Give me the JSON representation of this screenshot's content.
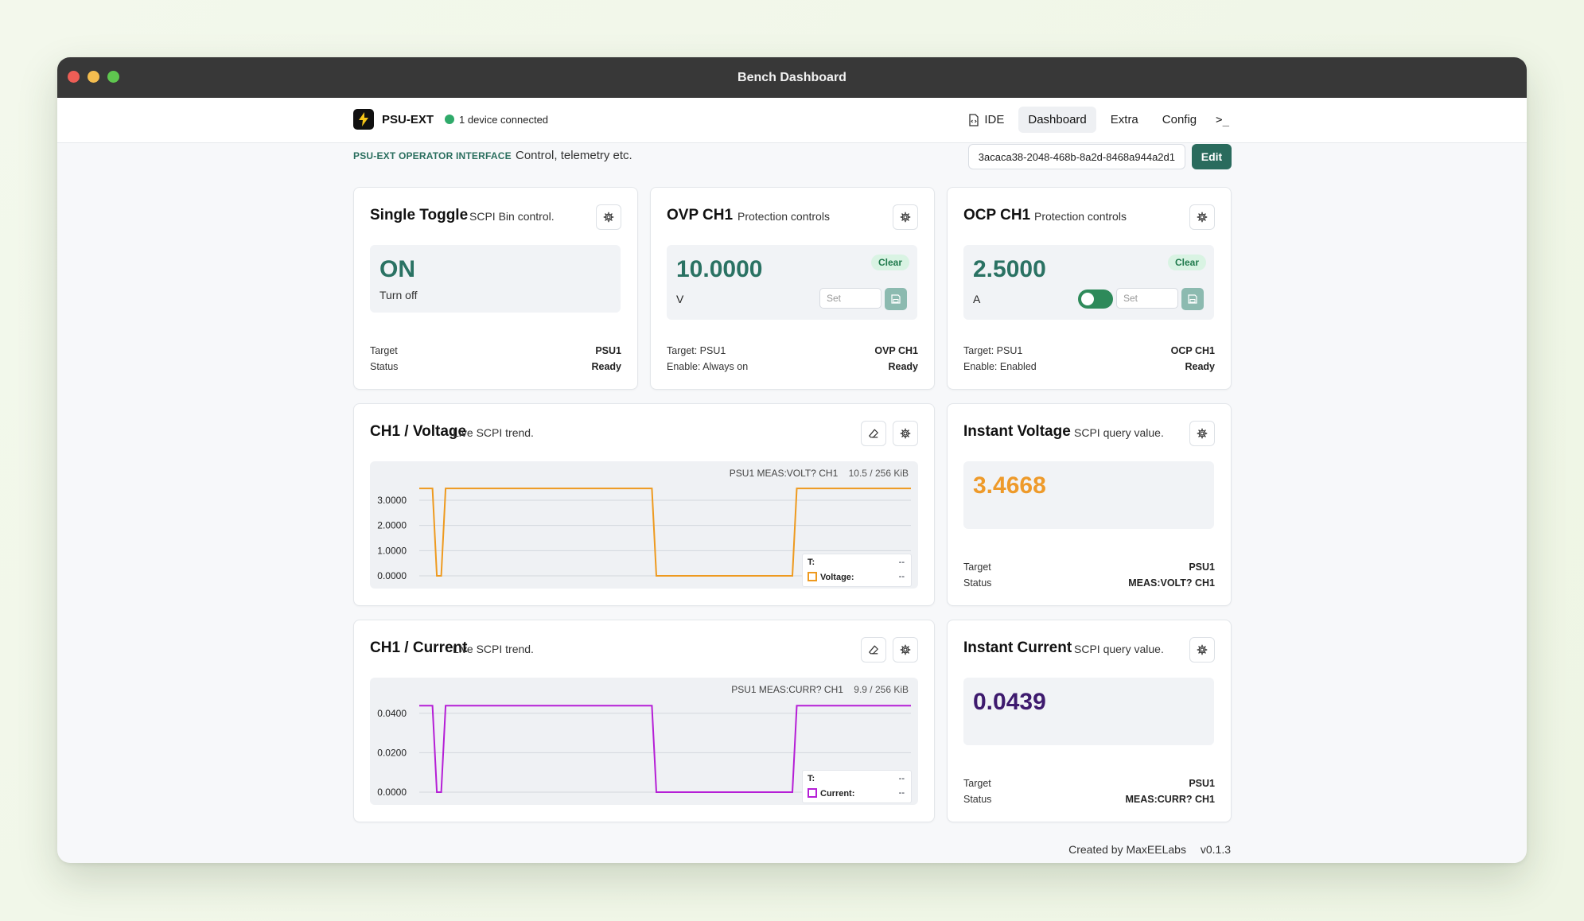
{
  "window": {
    "title": "Bench Dashboard"
  },
  "nav": {
    "brand": "PSU-EXT",
    "connection": "1 device connected",
    "links": [
      "IDE",
      "Dashboard",
      "Extra",
      "Config"
    ],
    "terminal": ">_"
  },
  "subheader": {
    "tag": "PSU-EXT OPERATOR INTERFACE",
    "description": "Control, telemetry etc.",
    "uuid": "3acaca38-2048-468b-8a2d-8468a944a2d1",
    "edit_label": "Edit"
  },
  "toggle_card": {
    "title": "Single Toggle",
    "subtitle": "SCPI Bin control.",
    "state": "ON",
    "action": "Turn off",
    "target_label": "Target",
    "target_value": "PSU1",
    "status_label": "Status",
    "status_value": "Ready"
  },
  "ovp_card": {
    "title": "OVP CH1",
    "subtitle": "Protection controls",
    "value": "10.0000",
    "unit": "V",
    "clear_label": "Clear",
    "set_placeholder": "Set",
    "target": "Target: PSU1",
    "enable": "Enable: Always on",
    "name": "OVP CH1",
    "status": "Ready"
  },
  "ocp_card": {
    "title": "OCP CH1",
    "subtitle": "Protection controls",
    "value": "2.5000",
    "unit": "A",
    "clear_label": "Clear",
    "set_placeholder": "Set",
    "target": "Target: PSU1",
    "enable": "Enable: Enabled",
    "name": "OCP CH1",
    "status": "Ready",
    "toggle_on": true
  },
  "voltage_chart_card": {
    "title": "CH1 / Voltage",
    "subtitle": "Live SCPI trend.",
    "meta": "PSU1 MEAS:VOLT? CH1",
    "meta_size": "10.5 / 256 KiB",
    "legend_t_label": "T:",
    "legend_t_value": "--",
    "legend_series_label": "Voltage:",
    "legend_series_value": "--",
    "color": "#ee9a1f"
  },
  "current_chart_card": {
    "title": "CH1 / Current",
    "subtitle": "Live SCPI trend.",
    "meta": "PSU1 MEAS:CURR? CH1",
    "meta_size": "9.9 / 256 KiB",
    "legend_t_label": "T:",
    "legend_t_value": "--",
    "legend_series_label": "Current:",
    "legend_series_value": "--",
    "color": "#b51fd6"
  },
  "instant_voltage": {
    "title": "Instant Voltage",
    "subtitle": "SCPI query value.",
    "value": "3.4668",
    "target_label": "Target",
    "target_value": "PSU1",
    "status_label": "Status",
    "status_value": "MEAS:VOLT? CH1",
    "color": "#ee9a2a"
  },
  "instant_current": {
    "title": "Instant Current",
    "subtitle": "SCPI query value.",
    "value": "0.0439",
    "target_label": "Target",
    "target_value": "PSU1",
    "status_label": "Status",
    "status_value": "MEAS:CURR? CH1",
    "color": "#3e1a6e"
  },
  "footer": {
    "credit": "Created by MaxEELabs",
    "version": "v0.1.3"
  },
  "chart_data": [
    {
      "type": "line",
      "series": [
        {
          "name": "Voltage",
          "x": [
            0,
            3,
            4,
            5,
            6,
            53,
            54,
            85,
            86,
            112
          ],
          "values": [
            3.47,
            3.47,
            0.0,
            0.0,
            3.47,
            3.47,
            0.0,
            0.0,
            3.47,
            3.47
          ]
        }
      ],
      "yticks": [
        "3.0000",
        "2.0000",
        "1.0000",
        "0.0000"
      ],
      "ylim": [
        0,
        3.6
      ]
    },
    {
      "type": "line",
      "series": [
        {
          "name": "Current",
          "x": [
            0,
            3,
            4,
            5,
            6,
            53,
            54,
            85,
            86,
            112
          ],
          "values": [
            0.0439,
            0.0439,
            0.0,
            0.0,
            0.0439,
            0.0439,
            0.0,
            0.0,
            0.0439,
            0.0439
          ]
        }
      ],
      "yticks": [
        "0.0400",
        "0.0200",
        "0.0000"
      ],
      "ylim": [
        0,
        0.046
      ]
    }
  ]
}
